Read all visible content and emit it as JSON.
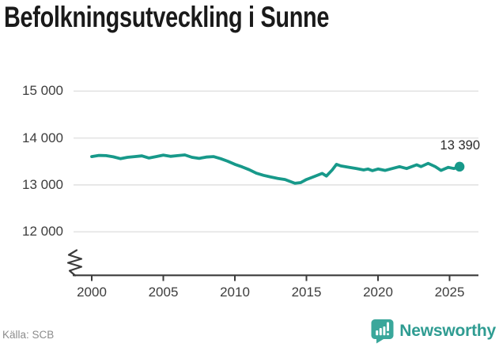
{
  "title": "Befolkningsutveckling i Sunne",
  "source": "Källa: SCB",
  "branding": {
    "name": "Newsworthy",
    "icon": "bar-chart-speech-bubble-icon",
    "badge_color": "#3aa79b",
    "text_color": "#2f9c92"
  },
  "colors": {
    "line": "#17998a",
    "grid": "#e3e3e3",
    "axis": "#3b3b3b",
    "title_text": "#1a1a1a",
    "tick_text": "#3d3d3d",
    "source_text": "#8c8c8c"
  },
  "chart_data": {
    "type": "line",
    "title": "Befolkningsutveckling i Sunne",
    "xlabel": "",
    "ylabel": "",
    "grid": "horizontal",
    "legend": "none",
    "y_axis_break": true,
    "xlim": [
      1998.7,
      2028
    ],
    "ylim": [
      12000,
      15300
    ],
    "x_ticks": [
      2000,
      2005,
      2010,
      2015,
      2020,
      2025
    ],
    "y_tick_values": [
      15000,
      14000,
      13000,
      12000
    ],
    "y_tick_labels": [
      "15 000",
      "14 000",
      "13 000",
      "12 000"
    ],
    "x": [
      2000,
      2000.5,
      2001,
      2001.5,
      2002,
      2002.5,
      2003,
      2003.5,
      2004,
      2004.5,
      2005,
      2005.5,
      2006,
      2006.5,
      2007,
      2007.5,
      2008,
      2008.5,
      2009,
      2009.5,
      2010,
      2010.5,
      2011,
      2011.5,
      2012,
      2012.5,
      2013,
      2013.5,
      2014.2,
      2014.6,
      2015,
      2015.5,
      2016.1,
      2016.4,
      2016.8,
      2017.1,
      2017.4,
      2018,
      2018.5,
      2019,
      2019.3,
      2019.6,
      2020,
      2020.5,
      2021,
      2021.5,
      2022,
      2022.7,
      2023,
      2023.5,
      2024,
      2024.4,
      2024.9,
      2025.3,
      2025.7
    ],
    "values": [
      13605,
      13630,
      13625,
      13600,
      13560,
      13590,
      13605,
      13620,
      13575,
      13605,
      13635,
      13610,
      13625,
      13640,
      13590,
      13565,
      13595,
      13605,
      13560,
      13505,
      13440,
      13385,
      13325,
      13250,
      13205,
      13170,
      13140,
      13115,
      13035,
      13050,
      13115,
      13175,
      13245,
      13190,
      13320,
      13440,
      13405,
      13375,
      13350,
      13320,
      13340,
      13305,
      13340,
      13310,
      13350,
      13390,
      13350,
      13430,
      13390,
      13460,
      13390,
      13310,
      13375,
      13350,
      13390
    ],
    "last_point": {
      "x": 2025.7,
      "value": 13390,
      "label": "13 390"
    }
  }
}
